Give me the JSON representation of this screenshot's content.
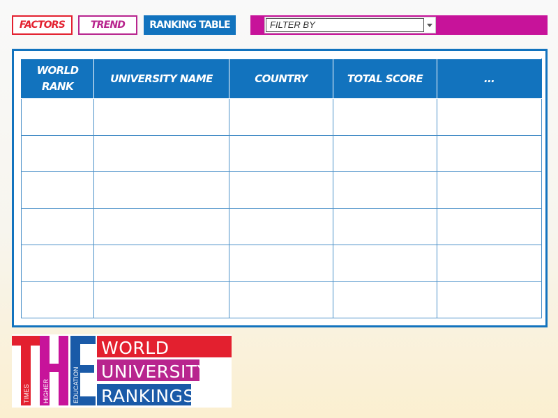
{
  "tabs": {
    "factors": "FACTORS",
    "trend": "TREND",
    "ranking": "RANKING TABLE"
  },
  "filter": {
    "value": "FILTER BY"
  },
  "table": {
    "columns": [
      "WORLD RANK",
      "UNIVERSITY NAME",
      "COUNTRY",
      "TOTAL SCORE",
      "..."
    ],
    "rows": [
      [
        "",
        "",
        "",
        "",
        ""
      ],
      [
        "",
        "",
        "",
        "",
        ""
      ],
      [
        "",
        "",
        "",
        "",
        ""
      ],
      [
        "",
        "",
        "",
        "",
        ""
      ],
      [
        "",
        "",
        "",
        "",
        ""
      ],
      [
        "",
        "",
        "",
        "",
        ""
      ]
    ]
  },
  "logo": {
    "letters": "THE",
    "sub": [
      "TIMES",
      "HIGHER",
      "EDUCATION"
    ],
    "lines": [
      "WORLD",
      "UNIVERSITY",
      "RANKINGS"
    ]
  },
  "colors": {
    "red": "#e3202f",
    "magenta": "#c7139a",
    "purple": "#b8258e",
    "blue": "#1273be"
  }
}
